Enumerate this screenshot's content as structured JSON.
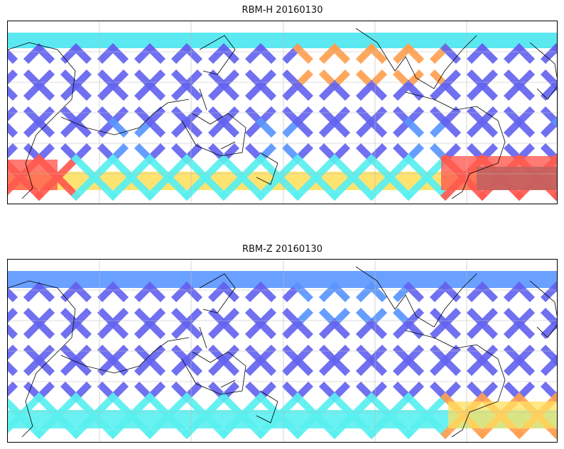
{
  "panels": [
    {
      "title": "RBM-H 20160130",
      "variable": "RBM-H",
      "date": "20160130"
    },
    {
      "title": "RBM-Z 20160130",
      "variable": "RBM-Z",
      "date": "20160130"
    }
  ],
  "colors": {
    "low": "#6464f0",
    "mid_low": "#5a96ff",
    "mid": "#5af0f0",
    "mid_high": "#aaf0a0",
    "high": "#ffe060",
    "higher": "#ffa050",
    "max": "#ff5a50",
    "extreme": "#c06060",
    "coast": "#000000",
    "grid": "#bbbbbb"
  }
}
